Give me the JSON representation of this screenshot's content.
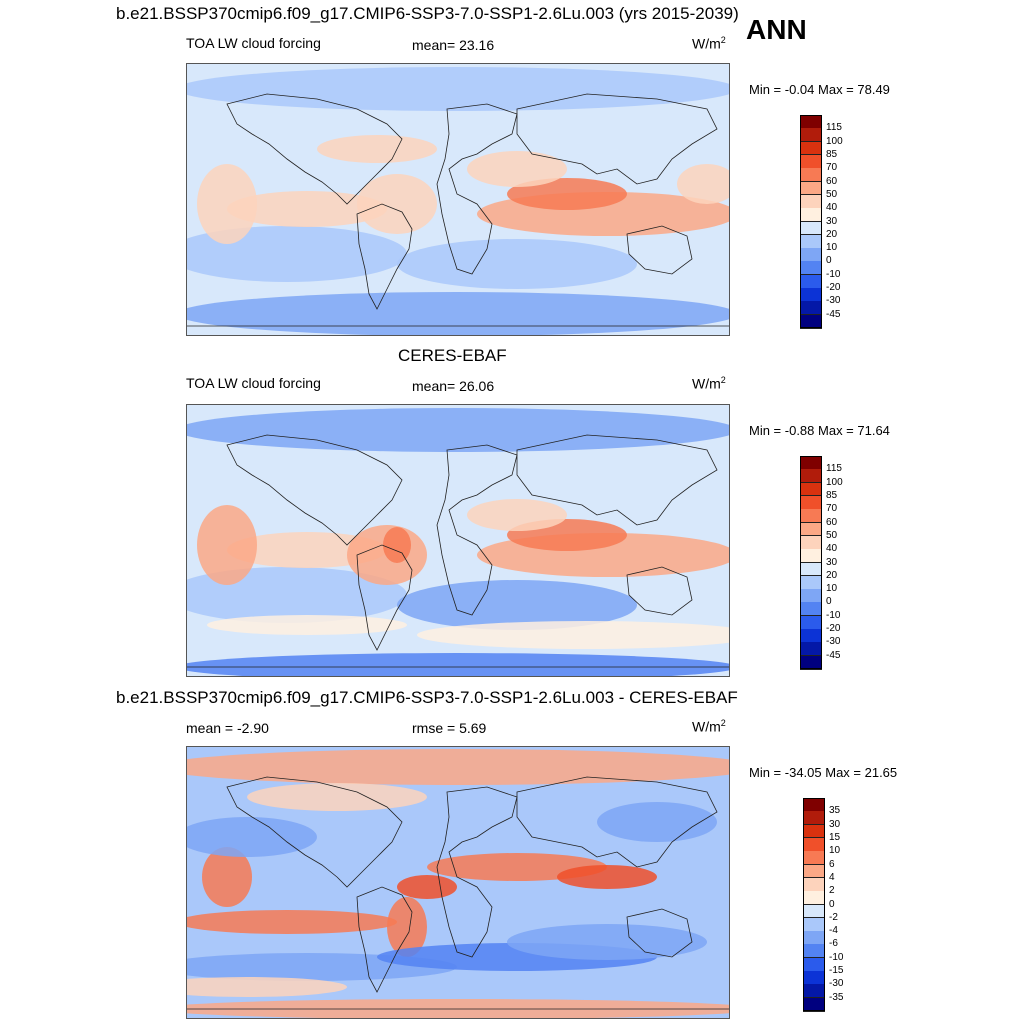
{
  "panels": [
    {
      "id": "model",
      "title": "b.e21.BSSP370cmip6.f09_g17.CMIP6-SSP3-7.0-SSP1-2.6Lu.003 (yrs 2015-2039)",
      "season": "ANN",
      "left_label": "TOA LW cloud forcing",
      "center_label": "mean=  23.16",
      "units": "W/m",
      "units_sup": "2",
      "minmax": "Min =  -0.04 Max =  78.49",
      "colorbar_labels": [
        "115",
        "100",
        "85",
        "70",
        "60",
        "50",
        "40",
        "30",
        "20",
        "10",
        "0",
        "-10",
        "-20",
        "-30",
        "-45"
      ],
      "colors": [
        "#7f0000",
        "#b11c0b",
        "#d9320f",
        "#f0502a",
        "#f77a54",
        "#fba886",
        "#fdd3bc",
        "#fff0e0",
        "#d8e8fb",
        "#aac8fa",
        "#7ea6f5",
        "#5383f2",
        "#2b5bec",
        "#0c33d6",
        "#0418a7",
        "#00007f"
      ]
    },
    {
      "id": "obs",
      "title": "CERES-EBAF",
      "left_label": "TOA LW cloud forcing",
      "center_label": "mean=  26.06",
      "units": "W/m",
      "units_sup": "2",
      "minmax": "Min =  -0.88 Max =  71.64",
      "colorbar_labels": [
        "115",
        "100",
        "85",
        "70",
        "60",
        "50",
        "40",
        "30",
        "20",
        "10",
        "0",
        "-10",
        "-20",
        "-30",
        "-45"
      ],
      "colors": [
        "#7f0000",
        "#b11c0b",
        "#d9320f",
        "#f0502a",
        "#f77a54",
        "#fba886",
        "#fdd3bc",
        "#fff0e0",
        "#d8e8fb",
        "#aac8fa",
        "#7ea6f5",
        "#5383f2",
        "#2b5bec",
        "#0c33d6",
        "#0418a7",
        "#00007f"
      ]
    },
    {
      "id": "diff",
      "title": "b.e21.BSSP370cmip6.f09_g17.CMIP6-SSP3-7.0-SSP1-2.6Lu.003 - CERES-EBAF",
      "left_label": "mean =  -2.90",
      "center_label": "rmse =   5.69",
      "units": "W/m",
      "units_sup": "2",
      "minmax": "Min = -34.05 Max =  21.65",
      "colorbar_labels": [
        "35",
        "30",
        "15",
        "10",
        "6",
        "4",
        "2",
        "0",
        "-2",
        "-4",
        "-6",
        "-10",
        "-15",
        "-30",
        "-35"
      ],
      "colors": [
        "#7f0000",
        "#b11c0b",
        "#d9320f",
        "#f0502a",
        "#f77a54",
        "#fba886",
        "#fdd3bc",
        "#fff0e0",
        "#d8e8fb",
        "#aac8fa",
        "#7ea6f5",
        "#5383f2",
        "#2b5bec",
        "#0c33d6",
        "#0418a7",
        "#00007f"
      ]
    }
  ]
}
